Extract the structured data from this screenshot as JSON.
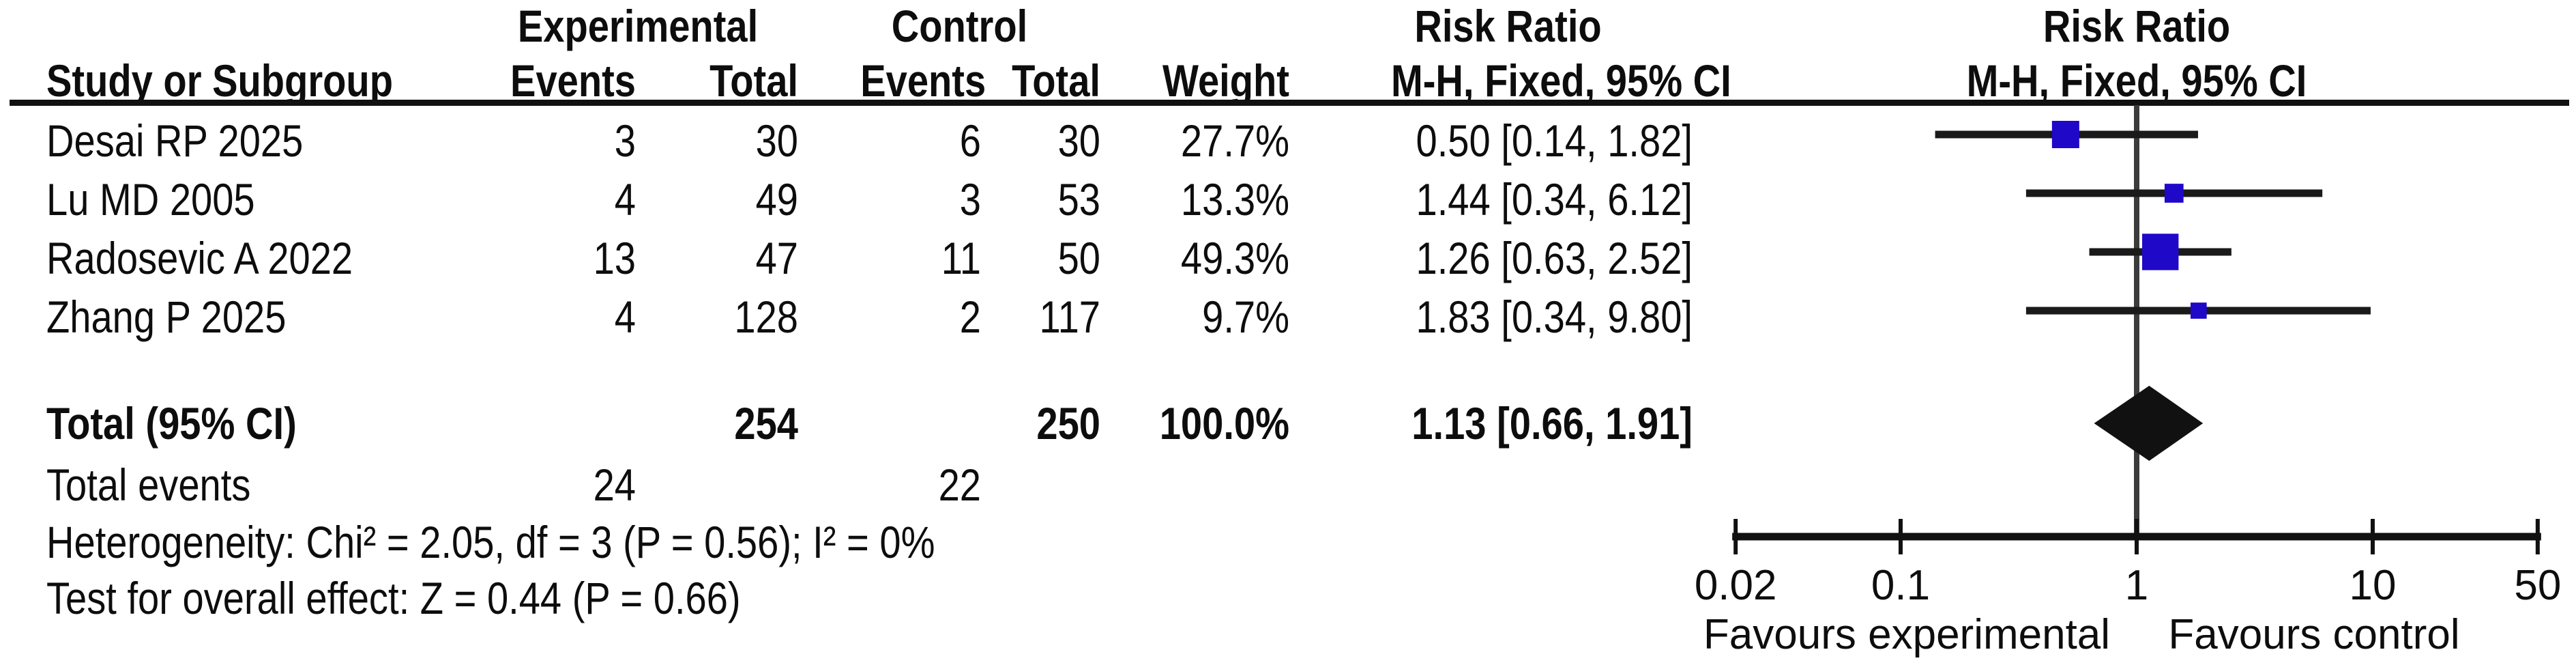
{
  "table": {
    "group_headers": {
      "experimental": "Experimental",
      "control": "Control",
      "risk_ratio": "Risk Ratio"
    },
    "columns": {
      "study": "Study or Subgroup",
      "events": "Events",
      "total": "Total",
      "weight": "Weight",
      "mh_ci": "M-H, Fixed, 95% CI"
    },
    "rows": [
      {
        "study": "Desai RP 2025",
        "exp_events": "3",
        "exp_total": "30",
        "ctl_events": "6",
        "ctl_total": "30",
        "weight": "27.7%",
        "rr_ci": "0.50 [0.14, 1.82]"
      },
      {
        "study": "Lu MD 2005",
        "exp_events": "4",
        "exp_total": "49",
        "ctl_events": "3",
        "ctl_total": "53",
        "weight": "13.3%",
        "rr_ci": "1.44 [0.34, 6.12]"
      },
      {
        "study": "Radosevic A 2022",
        "exp_events": "13",
        "exp_total": "47",
        "ctl_events": "11",
        "ctl_total": "50",
        "weight": "49.3%",
        "rr_ci": "1.26 [0.63, 2.52]"
      },
      {
        "study": "Zhang P 2025",
        "exp_events": "4",
        "exp_total": "128",
        "ctl_events": "2",
        "ctl_total": "117",
        "weight": "9.7%",
        "rr_ci": "1.83 [0.34, 9.80]"
      }
    ],
    "total_row": {
      "label": "Total (95% CI)",
      "exp_total": "254",
      "ctl_total": "250",
      "weight": "100.0%",
      "rr_ci": "1.13 [0.66, 1.91]"
    },
    "total_events": {
      "label": "Total events",
      "exp": "24",
      "ctl": "22"
    },
    "heterogeneity": "Heterogeneity: Chi² = 2.05, df = 3 (P = 0.56); I² = 0%",
    "overall_effect": "Test for overall effect: Z = 0.44 (P = 0.66)"
  },
  "chart_data": {
    "type": "forest",
    "x_scale": "log",
    "x_range": [
      0.02,
      50
    ],
    "x_ticks": [
      0.02,
      0.1,
      1,
      10,
      50
    ],
    "x_tick_labels": [
      "0.02",
      "0.1",
      "1",
      "10",
      "50"
    ],
    "null_line": 1,
    "effect_measure": "Risk Ratio",
    "method": "M-H, Fixed, 95% CI",
    "studies": [
      {
        "name": "Desai RP 2025",
        "rr": 0.5,
        "ci_low": 0.14,
        "ci_high": 1.82,
        "weight_pct": 27.7
      },
      {
        "name": "Lu MD 2005",
        "rr": 1.44,
        "ci_low": 0.34,
        "ci_high": 6.12,
        "weight_pct": 13.3
      },
      {
        "name": "Radosevic A 2022",
        "rr": 1.26,
        "ci_low": 0.63,
        "ci_high": 2.52,
        "weight_pct": 49.3
      },
      {
        "name": "Zhang P 2025",
        "rr": 1.83,
        "ci_low": 0.34,
        "ci_high": 9.8,
        "weight_pct": 9.7
      }
    ],
    "total": {
      "label": "Total (95% CI)",
      "rr": 1.13,
      "ci_low": 0.66,
      "ci_high": 1.91,
      "weight_pct": 100.0
    },
    "favours_left": "Favours experimental",
    "favours_right": "Favours control",
    "colors": {
      "marker": "#2008c8",
      "diamond": "#111111",
      "ci_line": "#1a1a1a",
      "axis": "#111111",
      "null_line": "#3c3c3c",
      "text": "#0d0d0d"
    }
  }
}
